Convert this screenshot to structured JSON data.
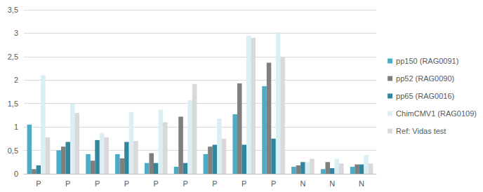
{
  "chart_data": {
    "type": "bar",
    "categories": [
      "P",
      "P",
      "P",
      "P",
      "P",
      "P",
      "P",
      "P",
      "P",
      "N",
      "N",
      "N"
    ],
    "series": [
      {
        "name": "pp150 (RAG0091)",
        "color": "#4bacc6",
        "values": [
          1.05,
          0.5,
          0.42,
          0.42,
          0.23,
          0.15,
          0.42,
          1.27,
          1.87,
          0.15,
          0.1,
          0.15
        ]
      },
      {
        "name": "pp52 (RAG0090)",
        "color": "#7f7f7f",
        "values": [
          0.1,
          0.58,
          0.28,
          0.33,
          0.44,
          1.22,
          0.58,
          1.93,
          2.37,
          0.18,
          0.25,
          0.2
        ]
      },
      {
        "name": "pp65 (RAG0016)",
        "color": "#31859c",
        "values": [
          0.18,
          0.68,
          0.72,
          0.68,
          0.23,
          0.23,
          0.62,
          0.62,
          0.75,
          0.25,
          0.12,
          0.2
        ]
      },
      {
        "name": "ChimCMV1 (RAG0109)",
        "color": "#daeef3",
        "values": [
          2.1,
          1.5,
          0.87,
          1.32,
          1.37,
          1.57,
          1.18,
          2.95,
          3.02,
          0.25,
          0.32,
          0.4
        ]
      },
      {
        "name": "Ref: Vidas test",
        "color": "#d9d9d9",
        "values": [
          0.78,
          1.3,
          0.78,
          0.7,
          1.1,
          1.92,
          0.75,
          2.9,
          2.48,
          0.32,
          0.22,
          0.22
        ]
      }
    ],
    "ylim": [
      0,
      3.5
    ],
    "yticks": [
      0,
      {
        "value": 0.5,
        "label": "0,5"
      },
      1,
      {
        "value": 1.5,
        "label": "1,5"
      },
      2,
      {
        "value": 2.5,
        "label": "2,5"
      },
      3,
      {
        "value": 3.5,
        "label": "3,5"
      }
    ],
    "grid": true,
    "legend": "right"
  }
}
